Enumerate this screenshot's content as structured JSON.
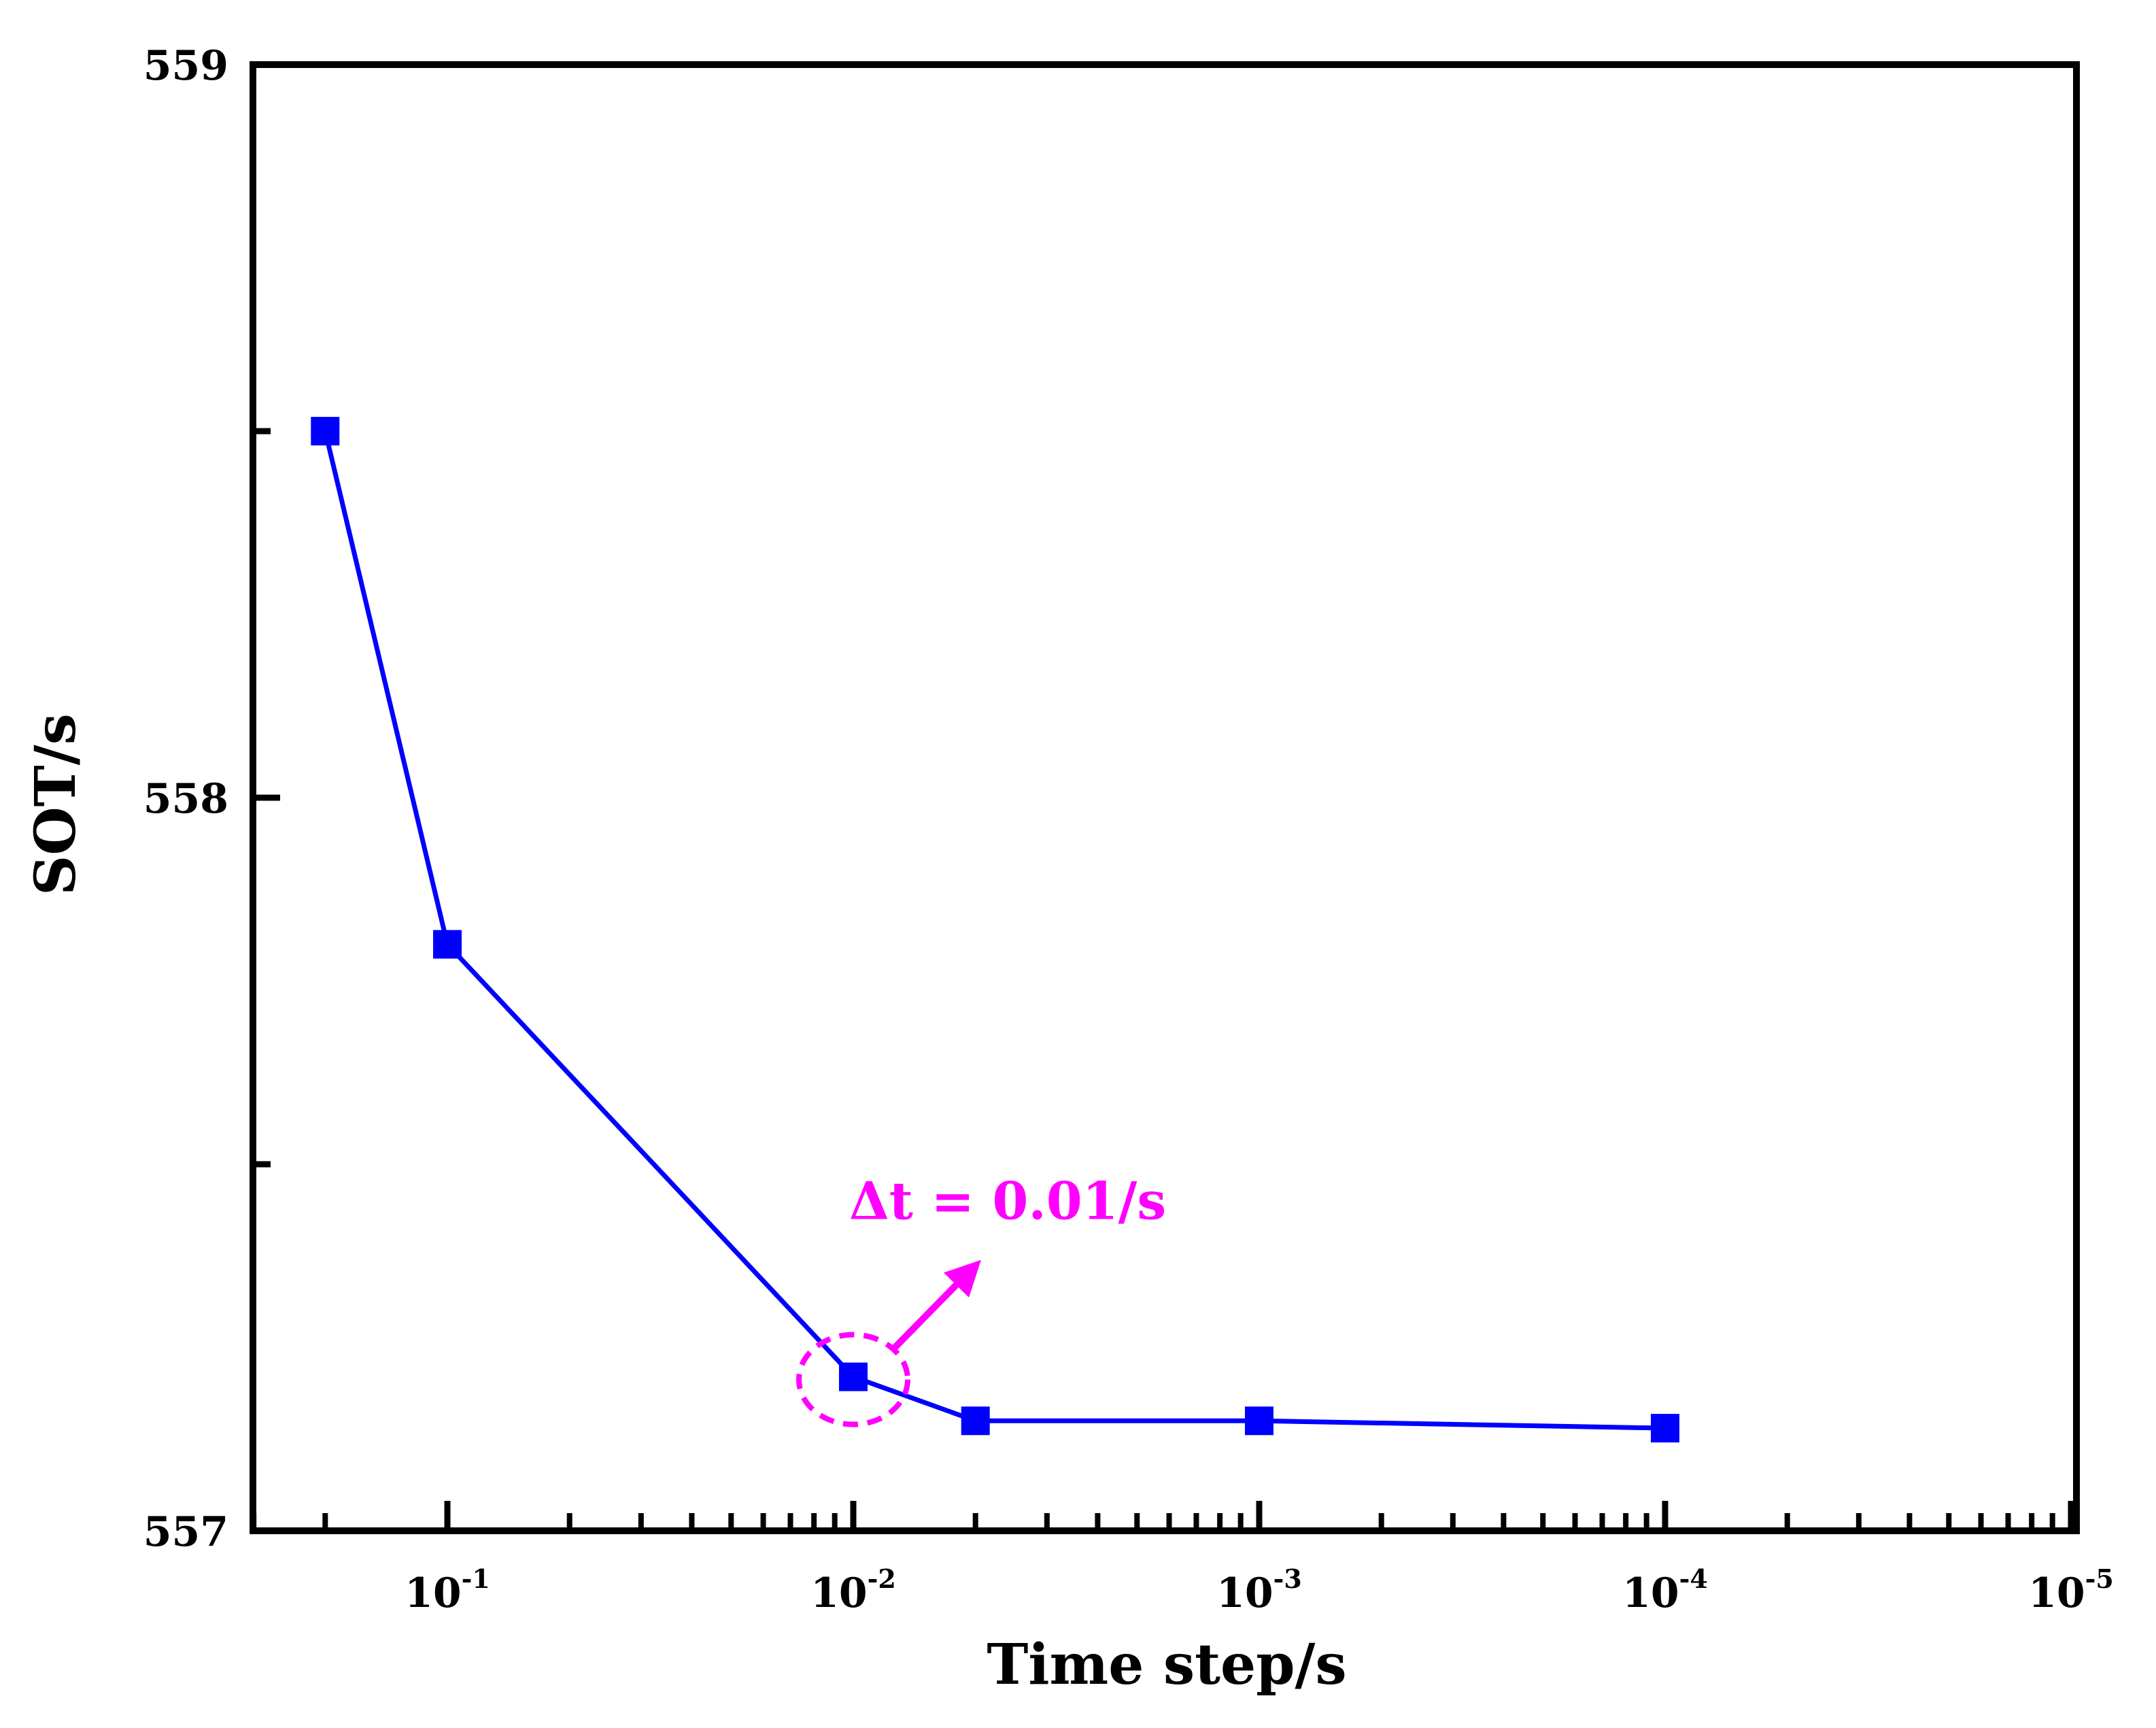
{
  "chart_data": {
    "type": "line",
    "xscale": "log",
    "xaxis_reversed": true,
    "xlabel": "Time step/s",
    "ylabel": "SOT/s",
    "ylim": [
      557,
      559
    ],
    "y_ticks": [
      {
        "value": 557,
        "label": "557"
      },
      {
        "value": 557.5,
        "label": ""
      },
      {
        "value": 558,
        "label": "558"
      },
      {
        "value": 558.5,
        "label": ""
      },
      {
        "value": 559,
        "label": "559"
      }
    ],
    "x_ticks": [
      {
        "value": 0.1,
        "base": "10",
        "exp": "-1"
      },
      {
        "value": 0.01,
        "base": "10",
        "exp": "-2"
      },
      {
        "value": 0.001,
        "base": "10",
        "exp": "-3"
      },
      {
        "value": 0.0001,
        "base": "10",
        "exp": "-4"
      },
      {
        "value": 1e-05,
        "base": "10",
        "exp": "-5"
      }
    ],
    "series": [
      {
        "name": "SOT",
        "color": "#0000FF",
        "marker": "square",
        "x": [
          0.2,
          0.1,
          0.01,
          0.005,
          0.001,
          0.0001
        ],
        "y": [
          558.5,
          557.8,
          557.21,
          557.15,
          557.15,
          557.14
        ]
      }
    ],
    "annotations": [
      {
        "text": "Δt = 0.01/s",
        "x": 0.01,
        "y": 557.21,
        "color": "#FF00FF",
        "style": "dashed-circle-with-arrow"
      }
    ]
  }
}
